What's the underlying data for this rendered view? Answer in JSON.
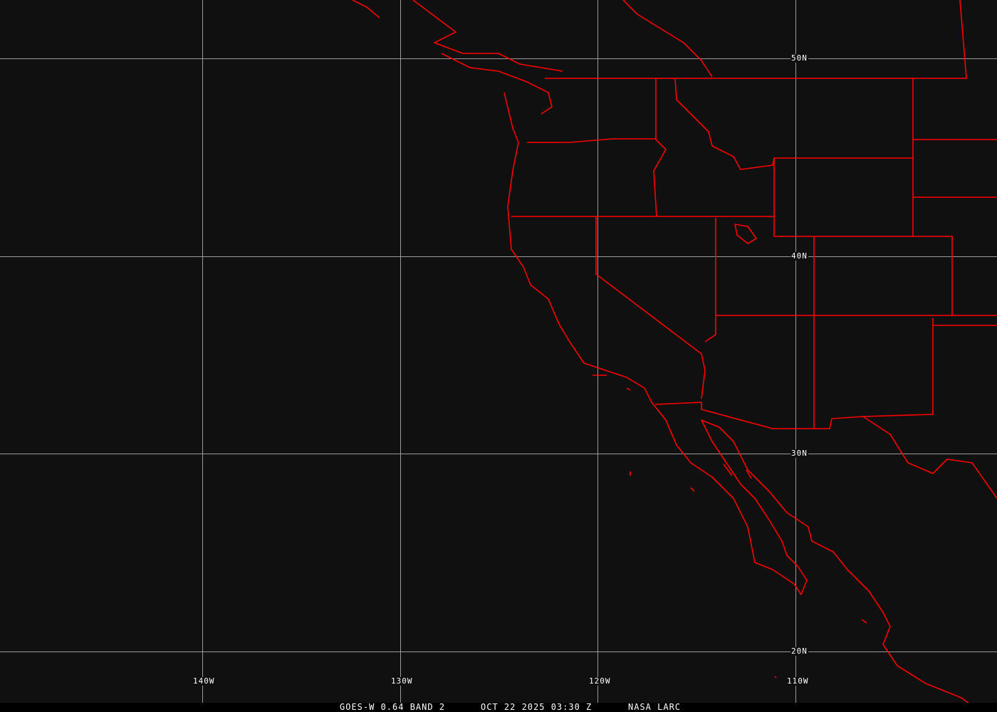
{
  "map": {
    "colors": {
      "background": "#101010",
      "grid": "#9a9a9a",
      "borders": "#ff0000"
    },
    "lon_labels": [
      "140W",
      "130W",
      "120W",
      "110W"
    ],
    "lat_labels": [
      "50N",
      "40N",
      "30N",
      "20N"
    ]
  },
  "caption": {
    "product": "GOES-W 0.64 BAND 2",
    "datetime": "OCT 22 2025 03:30 Z",
    "source": "NASA LARC"
  }
}
